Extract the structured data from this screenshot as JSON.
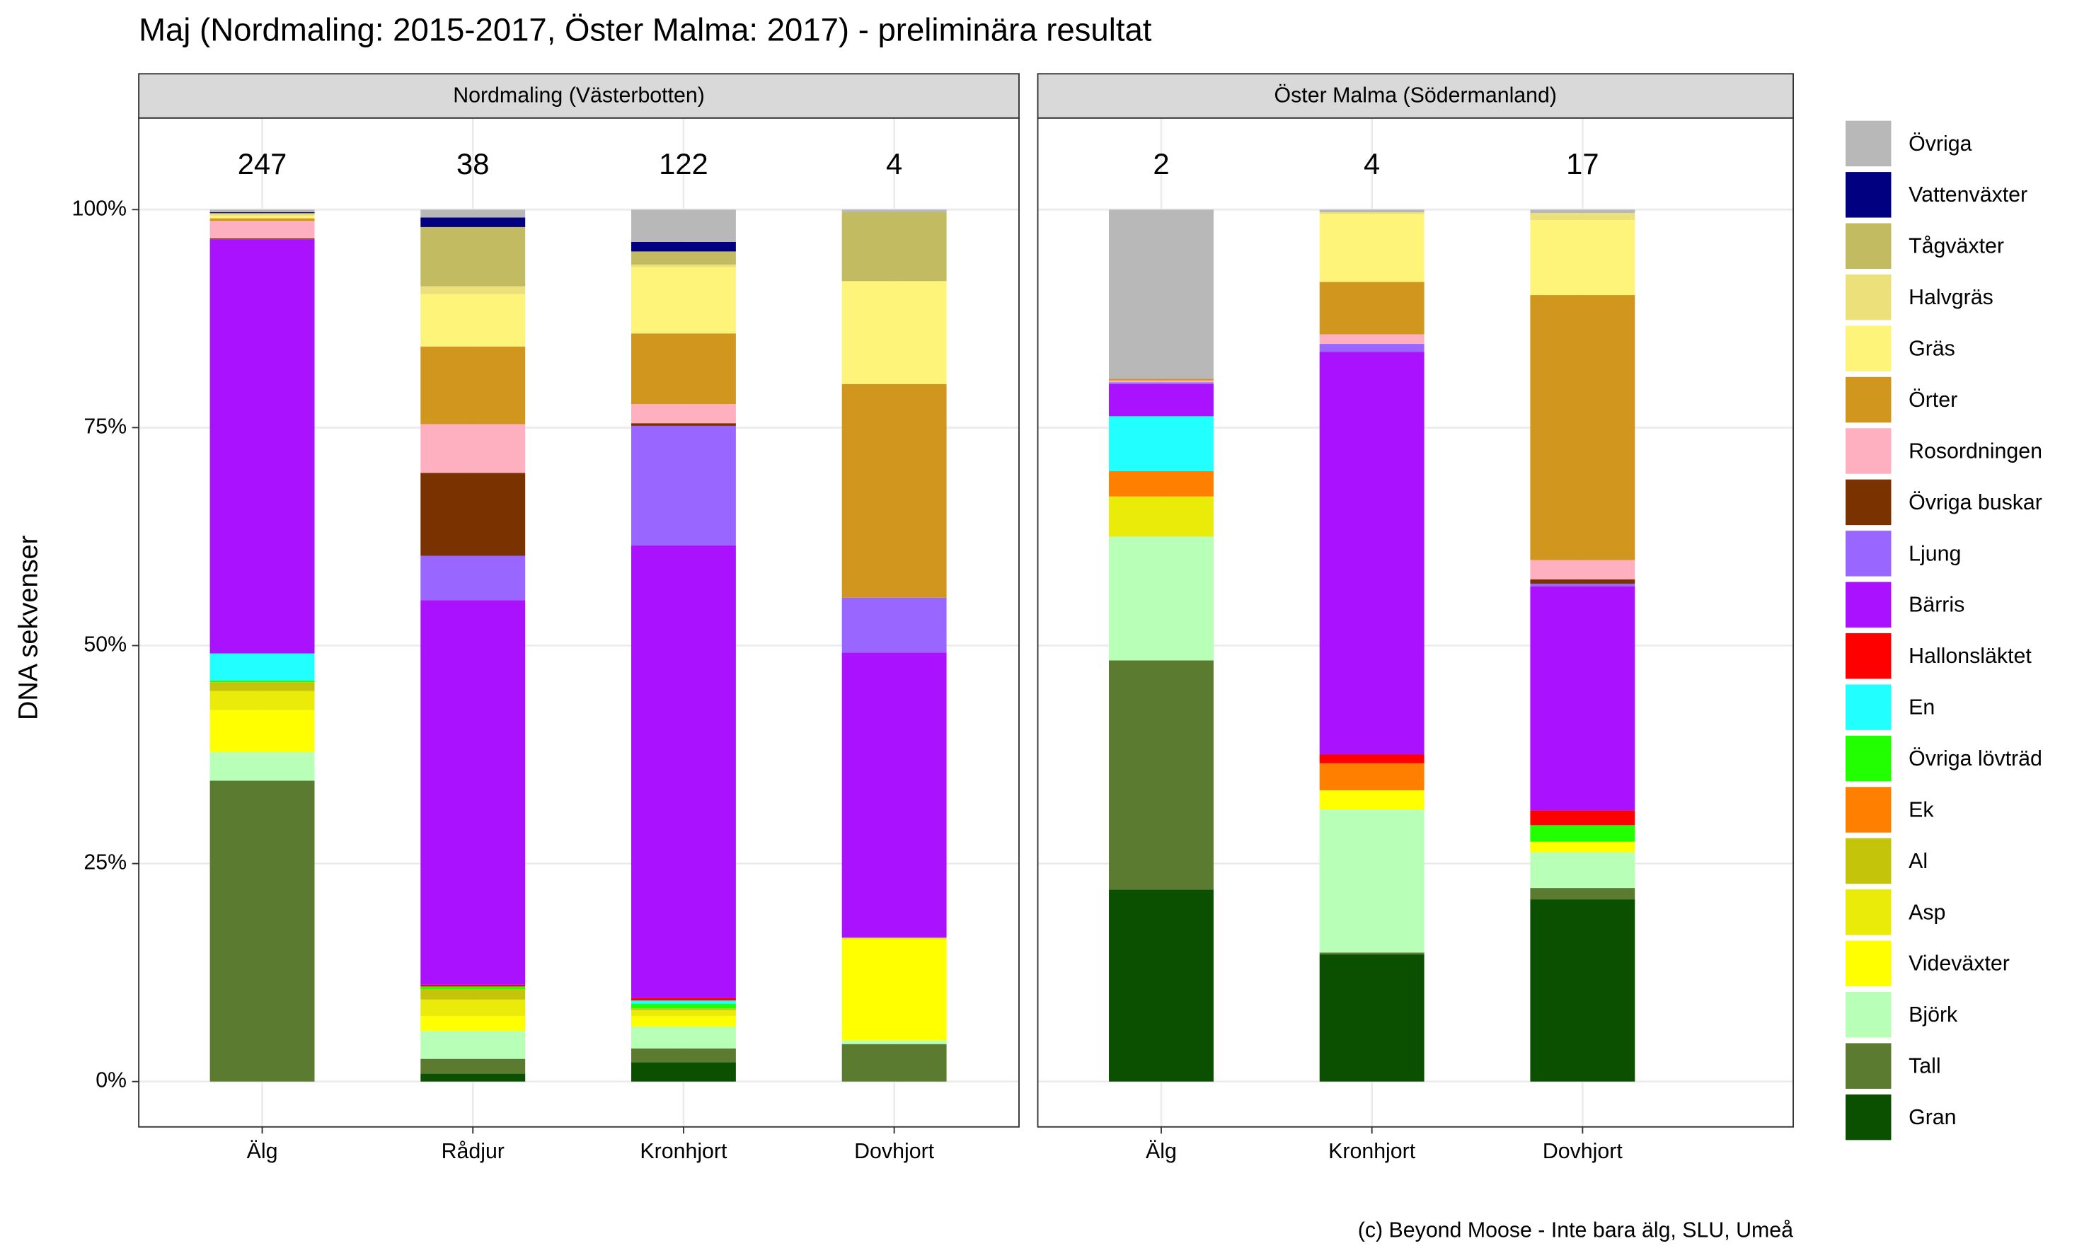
{
  "chart_data": {
    "type": "bar",
    "stacked": true,
    "title": "Maj (Nordmaling: 2015-2017, Öster Malma: 2017) - preliminära resultat",
    "ylabel": "DNA sekvenser",
    "caption": "(c) Beyond Moose - Inte bara älg, SLU, Umeå",
    "ylim": [
      -5.2,
      110.5
    ],
    "yticks": [
      {
        "value": 0,
        "label": "0%"
      },
      {
        "value": 25,
        "label": "25%"
      },
      {
        "value": 50,
        "label": "50%"
      },
      {
        "value": 75,
        "label": "75%"
      },
      {
        "value": 100,
        "label": "100%"
      }
    ],
    "grid": true,
    "series": [
      {
        "name": "Gran",
        "color": "#0b5000"
      },
      {
        "name": "Tall",
        "color": "#5b7b30"
      },
      {
        "name": "Björk",
        "color": "#b8ffb8"
      },
      {
        "name": "Videväxter",
        "color": "#ffff00"
      },
      {
        "name": "Asp",
        "color": "#ebeb0a"
      },
      {
        "name": "Al",
        "color": "#c4c40a"
      },
      {
        "name": "Ek",
        "color": "#ff7f00"
      },
      {
        "name": "Övriga lövträd",
        "color": "#22ff00"
      },
      {
        "name": "En",
        "color": "#22ffff"
      },
      {
        "name": "Hallonsläktet",
        "color": "#ff0000"
      },
      {
        "name": "Bärris",
        "color": "#aa11ff"
      },
      {
        "name": "Ljung",
        "color": "#9966ff"
      },
      {
        "name": "Övriga buskar",
        "color": "#7a3300"
      },
      {
        "name": "Rosordningen",
        "color": "#ffb0c0"
      },
      {
        "name": "Örter",
        "color": "#d0961e"
      },
      {
        "name": "Gräs",
        "color": "#fff47a"
      },
      {
        "name": "Halvgräs",
        "color": "#ece07a"
      },
      {
        "name": "Tågväxter",
        "color": "#c2bb62"
      },
      {
        "name": "Vattenväxter",
        "color": "#000080"
      },
      {
        "name": "Övriga",
        "color": "#b8b8b8"
      }
    ],
    "facets": [
      {
        "title": "Nordmaling (Västerbotten)",
        "categories": [
          "Älg",
          "Rådjur",
          "Kronhjort",
          "Dovhjort"
        ],
        "counts": [
          247,
          38,
          122,
          4
        ],
        "values": [
          [
            0,
            0.9,
            2.2,
            0
          ],
          [
            34.5,
            1.7,
            1.6,
            4.3
          ],
          [
            3.3,
            3.2,
            2.5,
            0.4
          ],
          [
            4.8,
            1.7,
            1.2,
            11.6
          ],
          [
            2.2,
            1.9,
            0.7,
            0.2
          ],
          [
            1.0,
            1.2,
            0.2,
            0
          ],
          [
            0,
            0,
            0,
            0
          ],
          [
            0.2,
            0.3,
            0.5,
            0
          ],
          [
            3.1,
            0,
            0.4,
            0
          ],
          [
            0,
            0.2,
            0.3,
            0
          ],
          [
            47.5,
            44.1,
            51.9,
            32.7
          ],
          [
            0,
            5.1,
            13.7,
            6.3
          ],
          [
            0.1,
            9.5,
            0.3,
            0
          ],
          [
            2.0,
            5.6,
            2.2,
            0
          ],
          [
            0.3,
            8.9,
            8.1,
            24.5
          ],
          [
            0.3,
            6.0,
            7.6,
            11.8
          ],
          [
            0.2,
            0.9,
            0.3,
            0
          ],
          [
            0.1,
            6.8,
            1.5,
            7.9
          ],
          [
            0.1,
            1.1,
            1.1,
            0
          ],
          [
            0.3,
            0.9,
            3.7,
            0.3
          ]
        ]
      },
      {
        "title": "Öster Malma (Södermanland)",
        "categories": [
          "Älg",
          "Kronhjort",
          "Dovhjort"
        ],
        "counts": [
          2,
          4,
          17
        ],
        "values": [
          [
            22.0,
            14.6,
            20.9
          ],
          [
            26.3,
            0.2,
            1.3
          ],
          [
            14.2,
            16.4,
            4.1
          ],
          [
            0,
            2.2,
            1.2
          ],
          [
            4.6,
            0,
            0
          ],
          [
            0,
            0,
            0
          ],
          [
            2.9,
            3.1,
            0
          ],
          [
            0,
            0,
            1.9
          ],
          [
            6.3,
            0,
            0
          ],
          [
            0,
            1.0,
            1.7
          ],
          [
            3.7,
            46.2,
            25.7
          ],
          [
            0.2,
            0.9,
            0.3
          ],
          [
            0,
            0,
            0.5
          ],
          [
            0.2,
            1.1,
            2.2
          ],
          [
            0.2,
            6.0,
            30.4
          ],
          [
            0,
            7.8,
            8.6
          ],
          [
            0,
            0.2,
            0.8
          ],
          [
            0,
            0,
            0
          ],
          [
            0,
            0,
            0
          ],
          [
            19.4,
            0.3,
            0.4
          ]
        ]
      }
    ]
  }
}
